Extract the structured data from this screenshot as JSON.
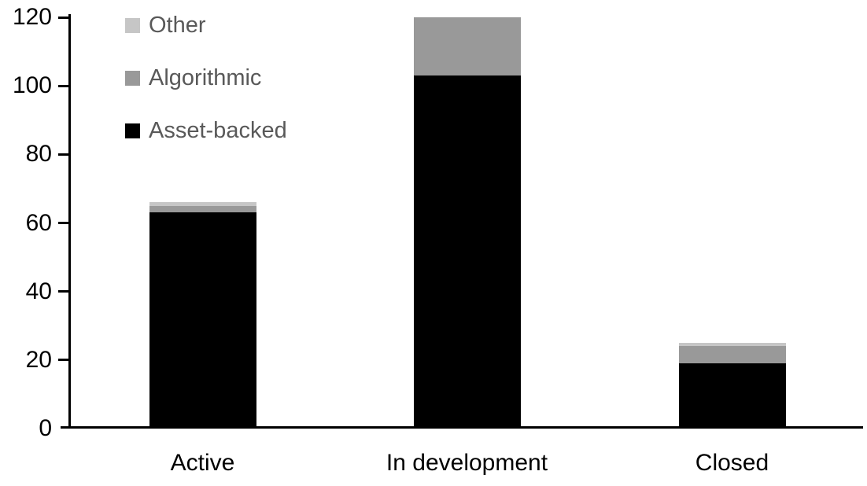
{
  "chart_data": {
    "type": "bar",
    "subtype": "stacked-vertical",
    "title": "",
    "xlabel": "",
    "ylabel": "",
    "categories": [
      "Active",
      "In development",
      "Closed"
    ],
    "series": [
      {
        "name": "Other",
        "color": "#c6c6c6",
        "values": [
          1,
          0,
          1
        ]
      },
      {
        "name": "Algorithmic",
        "color": "#999999",
        "values": [
          2,
          17,
          5
        ]
      },
      {
        "name": "Asset-backed",
        "color": "#000000",
        "values": [
          63,
          103,
          19
        ]
      }
    ],
    "stack_order_bottom_to_top": [
      "Asset-backed",
      "Algorithmic",
      "Other"
    ],
    "yticks": [
      0,
      20,
      40,
      60,
      80,
      100,
      120
    ],
    "ylim": [
      0,
      120
    ],
    "grid": false,
    "legend_position": "top-left",
    "colors": {
      "axis": "#000000",
      "tick_label": "#000000",
      "category_label": "#000000",
      "legend_text": "#595959",
      "background": "#ffffff"
    }
  }
}
